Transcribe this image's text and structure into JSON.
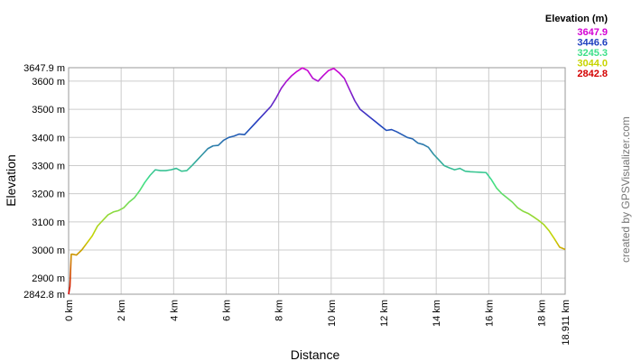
{
  "chart_data": {
    "type": "line",
    "xlabel": "Distance",
    "ylabel": "Elevation",
    "x_unit": "km",
    "y_unit": "m",
    "xlim": [
      0,
      18.911
    ],
    "ylim": [
      2842.8,
      3647.9
    ],
    "grid": true,
    "x_ticks": [
      {
        "value": 0,
        "label": "0 km"
      },
      {
        "value": 2,
        "label": "2 km"
      },
      {
        "value": 4,
        "label": "4 km"
      },
      {
        "value": 6,
        "label": "6 km"
      },
      {
        "value": 8,
        "label": "8 km"
      },
      {
        "value": 10,
        "label": "10 km"
      },
      {
        "value": 12,
        "label": "12 km"
      },
      {
        "value": 14,
        "label": "14 km"
      },
      {
        "value": 16,
        "label": "16 km"
      },
      {
        "value": 18,
        "label": "18 km"
      },
      {
        "value": 18.911,
        "label": "18.911 km"
      }
    ],
    "y_ticks": [
      {
        "value": 2842.8,
        "label": "2842.8 m"
      },
      {
        "value": 2900,
        "label": "2900 m"
      },
      {
        "value": 3000,
        "label": "3000 m"
      },
      {
        "value": 3100,
        "label": "3100 m"
      },
      {
        "value": 3200,
        "label": "3200 m"
      },
      {
        "value": 3300,
        "label": "3300 m"
      },
      {
        "value": 3400,
        "label": "3400 m"
      },
      {
        "value": 3500,
        "label": "3500 m"
      },
      {
        "value": 3600,
        "label": "3600 m"
      },
      {
        "value": 3647.9,
        "label": "3647.9 m"
      }
    ],
    "color_scale": {
      "title": "Elevation (m)",
      "stops": [
        {
          "value": "3647.9",
          "color": "#d400d4"
        },
        {
          "value": "3446.6",
          "color": "#1f3fbf"
        },
        {
          "value": "3245.3",
          "color": "#3ee08a"
        },
        {
          "value": "3044.0",
          "color": "#c8d400"
        },
        {
          "value": "2842.8",
          "color": "#d40000"
        }
      ]
    },
    "series": [
      {
        "x": [
          0,
          0.05,
          0.1,
          0.15,
          0.3,
          0.5,
          0.7,
          0.9,
          1.1,
          1.3,
          1.5,
          1.7,
          1.9,
          2.1,
          2.3,
          2.5,
          2.7,
          2.9,
          3.1,
          3.3,
          3.5,
          3.7,
          3.9,
          4.1,
          4.3,
          4.5,
          4.7,
          4.9,
          5.1,
          5.3,
          5.5,
          5.7,
          5.9,
          6.1,
          6.3,
          6.5,
          6.7,
          6.9,
          7.1,
          7.3,
          7.5,
          7.7,
          7.9,
          8.1,
          8.3,
          8.5,
          8.7,
          8.9,
          9.1,
          9.3,
          9.5,
          9.7,
          9.9,
          10.1,
          10.3,
          10.5,
          10.7,
          10.9,
          11.1,
          11.3,
          11.5,
          11.7,
          11.9,
          12.1,
          12.3,
          12.5,
          12.7,
          12.9,
          13.1,
          13.3,
          13.5,
          13.7,
          13.9,
          14.1,
          14.3,
          14.5,
          14.7,
          14.9,
          15.1,
          15.3,
          15.5,
          15.7,
          15.9,
          16.1,
          16.3,
          16.5,
          16.7,
          16.9,
          17.1,
          17.3,
          17.5,
          17.7,
          17.9,
          18.1,
          18.3,
          18.5,
          18.7,
          18.911
        ],
        "y": [
          2843,
          2870,
          2985,
          2985,
          2982,
          3000,
          3025,
          3050,
          3085,
          3105,
          3125,
          3135,
          3140,
          3150,
          3170,
          3185,
          3210,
          3240,
          3265,
          3285,
          3282,
          3282,
          3285,
          3290,
          3280,
          3282,
          3300,
          3320,
          3340,
          3360,
          3370,
          3372,
          3390,
          3400,
          3405,
          3412,
          3410,
          3430,
          3450,
          3470,
          3490,
          3510,
          3540,
          3575,
          3600,
          3620,
          3635,
          3647,
          3638,
          3610,
          3600,
          3620,
          3638,
          3645,
          3630,
          3610,
          3570,
          3530,
          3500,
          3485,
          3470,
          3455,
          3440,
          3425,
          3428,
          3420,
          3410,
          3400,
          3395,
          3380,
          3375,
          3365,
          3340,
          3320,
          3300,
          3292,
          3285,
          3290,
          3280,
          3278,
          3277,
          3276,
          3275,
          3250,
          3220,
          3200,
          3185,
          3170,
          3150,
          3138,
          3130,
          3118,
          3105,
          3090,
          3068,
          3040,
          3010,
          3002
        ]
      }
    ],
    "credit": "created by GPSVisualizer.com"
  }
}
